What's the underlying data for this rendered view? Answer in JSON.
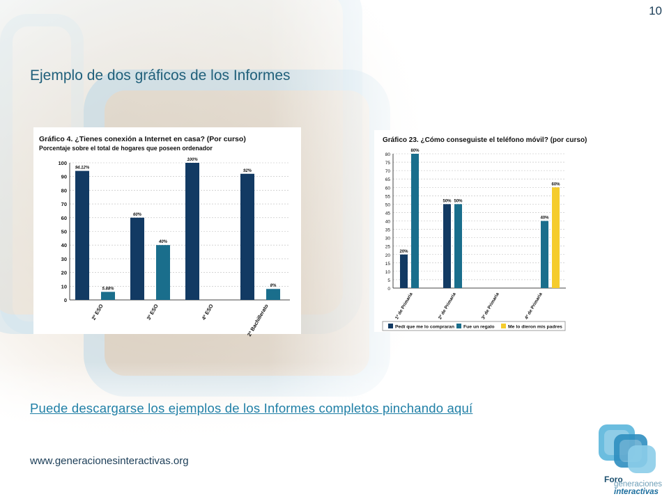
{
  "slide": {
    "page_number": "10",
    "title": "Ejemplo de dos gráficos de los Informes",
    "link_text": "Puede descargarse los ejemplos de los Informes completos pinchando aquí",
    "site_url": "www.generacionesinteractivas.org",
    "logo": {
      "line1": "Foro",
      "line2": "generaciones",
      "line3": "interactivas"
    }
  },
  "colors": {
    "dark_blue": "#123a63",
    "teal": "#1a6e8c",
    "yellow": "#f5cc2d",
    "link": "#1f7fa6",
    "title": "#1f5f7a"
  },
  "chart_data": [
    {
      "type": "bar",
      "title": "Gráfico 4. ¿Tienes conexión a Internet en casa? (Por curso)",
      "subtitle": "Porcentaje sobre el total de hogares que poseen ordenador",
      "categories": [
        "2º ESO",
        "3º ESO",
        "4º ESO",
        "2º Bachillerato"
      ],
      "series": [
        {
          "values": [
            94.12,
            60,
            100,
            92
          ],
          "labels": [
            "94.12%",
            "60%",
            "100%",
            "92%"
          ],
          "color": "#123a63"
        },
        {
          "values": [
            5.88,
            40,
            null,
            8
          ],
          "labels": [
            "5.88%",
            "40%",
            "",
            "8%"
          ],
          "color": "#1a6e8c"
        }
      ],
      "ylim": [
        0,
        100
      ],
      "yticks": [
        0,
        10,
        20,
        30,
        40,
        50,
        60,
        70,
        80,
        90,
        100
      ],
      "grid": true
    },
    {
      "type": "bar",
      "title": "Gráfico 23. ¿Cómo conseguiste el teléfono móvil? (por curso)",
      "categories": [
        "1º de Primaria",
        "2º de Primaria",
        "3º de Primaria",
        "4º de Primaria"
      ],
      "series": [
        {
          "name": "Pedí que me lo compraran",
          "values": [
            20,
            50,
            null,
            null
          ],
          "labels": [
            "20%",
            "50%",
            "",
            ""
          ],
          "color": "#123a63"
        },
        {
          "name": "Fue un regalo",
          "values": [
            80,
            50,
            null,
            40
          ],
          "labels": [
            "80%",
            "50%",
            "",
            "40%"
          ],
          "color": "#1a6e8c"
        },
        {
          "name": "Me lo dieron mis padres",
          "values": [
            null,
            null,
            null,
            60
          ],
          "labels": [
            "",
            "",
            "",
            "60%"
          ],
          "color": "#f5cc2d"
        }
      ],
      "ylim": [
        0,
        80
      ],
      "yticks": [
        0,
        5,
        10,
        15,
        20,
        25,
        30,
        35,
        40,
        45,
        50,
        55,
        60,
        65,
        70,
        75,
        80
      ],
      "grid": true,
      "legend": "bottom"
    }
  ]
}
